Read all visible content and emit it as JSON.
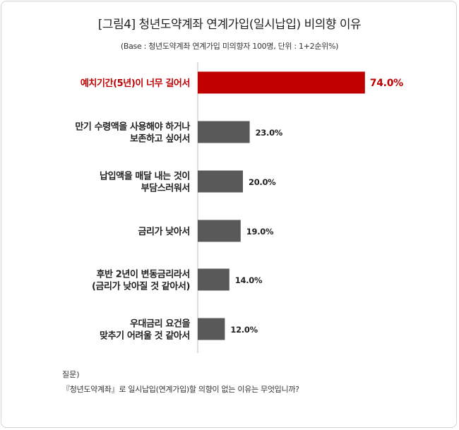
{
  "title": "[그림4] 청년도약계좌 연계가입(일시납입) 비의향 이유",
  "subtitle": "(Base : 청년도약계좌 연계가입 미의향자 100명, 단위 : 1+2순위%)",
  "chart_data": {
    "type": "bar",
    "orientation": "horizontal",
    "title": "[그림4] 청년도약계좌 연계가입(일시납입) 비의향 이유",
    "subtitle": "(Base : 청년도약계좌 연계가입 미의향자 100명, 단위 : 1+2순위%)",
    "categories": [
      [
        "예치기간(5년)이 너무 길어서"
      ],
      [
        "만기 수령액을 사용해야 하거나",
        "보존하고 싶어서"
      ],
      [
        "납입액을 매달 내는 것이",
        "부담스러워서"
      ],
      [
        "금리가 낮아서"
      ],
      [
        "후반 2년이 변동금리라서",
        "(금리가 낮아질 것 같아서)"
      ],
      [
        "우대금리 요건을",
        "맞추기 어려울 것 같아서"
      ]
    ],
    "values": [
      74.0,
      23.0,
      20.0,
      19.0,
      14.0,
      12.0
    ],
    "value_labels": [
      "74.0%",
      "23.0%",
      "20.0%",
      "19.0%",
      "14.0%",
      "12.0%"
    ],
    "highlight_index": 0,
    "colors": {
      "highlight": "#c00000",
      "default": "#595959",
      "axis": "#bfbfbf"
    },
    "xlim": [
      0,
      100
    ],
    "grid": false,
    "legend": "none"
  },
  "footer": {
    "question_label": "질문)",
    "question_text": "『청년도약계좌』로 일시납입(연계가입)할 의향이 없는 이유는 무엇입니까?"
  }
}
